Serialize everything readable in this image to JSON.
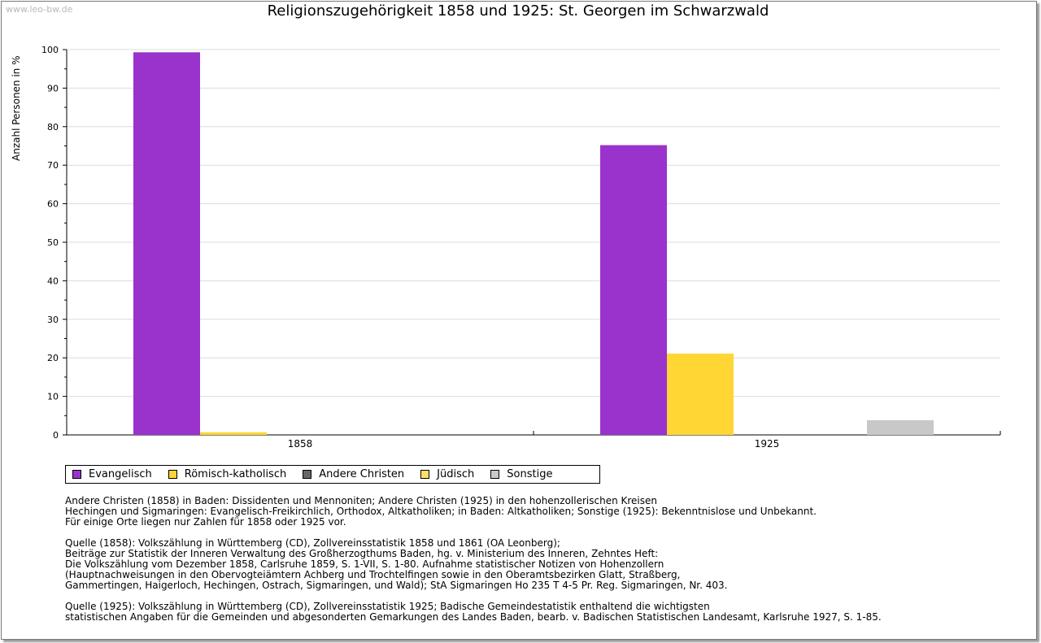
{
  "watermark": "www.leo-bw.de",
  "chart_data": {
    "type": "bar",
    "title": "Religionszugehörigkeit 1858 und 1925: St. Georgen im Schwarzwald",
    "xlabel": "",
    "ylabel": "Anzahl Personen in %",
    "ylim": [
      0,
      100
    ],
    "yticks": [
      0,
      10,
      20,
      30,
      40,
      50,
      60,
      70,
      80,
      90,
      100
    ],
    "grid": true,
    "legend_position": "bottom",
    "categories": [
      "1858",
      "1925"
    ],
    "series": [
      {
        "name": "Evangelisch",
        "color": "#9933cc",
        "values": [
          99.3,
          75.2
        ]
      },
      {
        "name": "Römisch-katholisch",
        "color": "#ffd633",
        "values": [
          0.7,
          21.1
        ]
      },
      {
        "name": "Andere Christen",
        "color": "#666666",
        "values": [
          0,
          0
        ]
      },
      {
        "name": "Jüdisch",
        "color": "#ffe066",
        "values": [
          0,
          0
        ]
      },
      {
        "name": "Sonstige",
        "color": "#c8c8c8",
        "values": [
          0,
          3.8
        ]
      }
    ]
  },
  "notes": [
    [
      "Andere Christen (1858) in Baden: Dissidenten und Mennoniten; Andere Christen (1925) in den hohenzollerischen Kreisen",
      "Hechingen und Sigmaringen: Evangelisch-Freikirchlich, Orthodox, Altkatholiken; in Baden: Altkatholiken; Sonstige (1925): Bekenntnislose und Unbekannt.",
      "Für einige Orte liegen nur Zahlen für 1858 oder 1925 vor."
    ],
    [
      "Quelle (1858): Volkszählung in Württemberg (CD), Zollvereinsstatistik 1858 und 1861 (OA Leonberg);",
      "Beiträge zur Statistik der Inneren Verwaltung des Großherzogthums Baden, hg. v. Ministerium des Inneren, Zehntes Heft:",
      "Die Volkszählung vom Dezember 1858, Carlsruhe 1859, S. 1-VII, S. 1-80. Aufnahme statistischer Notizen von Hohenzollern",
      "(Hauptnachweisungen in den Obervogteiämtern Achberg und Trochtelfingen sowie in den Oberamtsbezirken Glatt, Straßberg,",
      "Gammertingen, Haigerloch, Hechingen, Ostrach, Sigmaringen, und Wald); StA Sigmaringen Ho 235 T 4-5 Pr. Reg. Sigmaringen, Nr. 403."
    ],
    [
      "Quelle (1925): Volkszählung in Württemberg (CD), Zollvereinsstatistik 1925; Badische Gemeindestatistik enthaltend die wichtigsten",
      "statistischen Angaben für die Gemeinden und abgesonderten Gemarkungen des Landes Baden, bearb. v. Badischen Statistischen Landesamt, Karlsruhe 1927, S. 1-85."
    ]
  ]
}
